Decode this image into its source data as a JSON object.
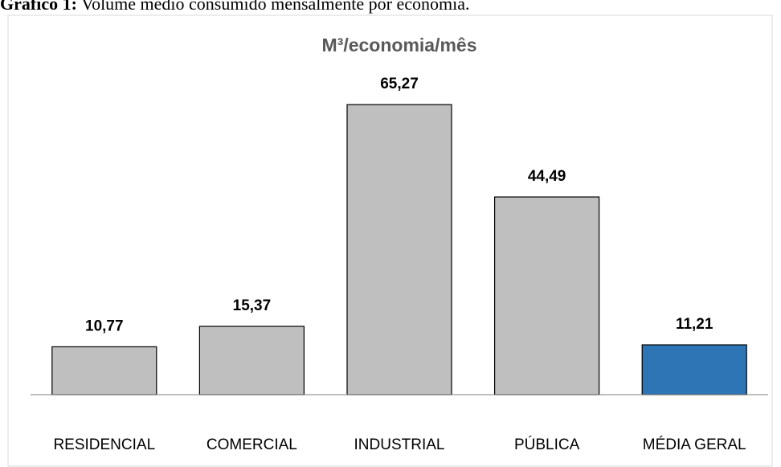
{
  "caption_label": "Gráfico 1:",
  "caption": "Volume médio consumido mensalmente por economia.",
  "chart_data": {
    "type": "bar",
    "title": "M³/economia/mês",
    "categories": [
      "RESIDENCIAL",
      "COMERCIAL",
      "INDUSTRIAL",
      "PÚBLICA",
      "MÉDIA GERAL"
    ],
    "values": [
      10.77,
      15.37,
      65.27,
      44.49,
      11.21
    ],
    "value_labels": [
      "10,77",
      "15,37",
      "65,27",
      "44,49",
      "11,21"
    ],
    "colors": [
      "#bfbfbf",
      "#bfbfbf",
      "#bfbfbf",
      "#bfbfbf",
      "#2e75b6"
    ],
    "ylim": [
      0,
      70
    ]
  }
}
